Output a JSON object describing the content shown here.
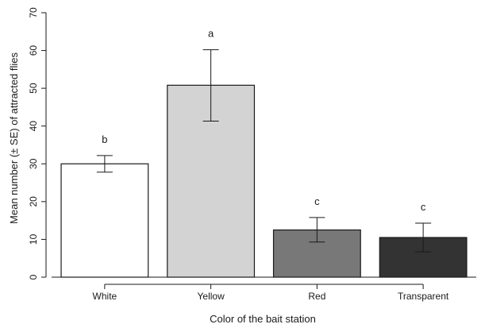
{
  "chart_data": {
    "type": "bar",
    "title": "",
    "xlabel": "Color of the bait station",
    "ylabel": "Mean number (± SE) of attracted flies",
    "ylim": [
      0,
      70
    ],
    "yticks": [
      "0",
      "10",
      "20",
      "30",
      "40",
      "50",
      "60",
      "70"
    ],
    "categories": [
      "White",
      "Yellow",
      "Red",
      "Transparent"
    ],
    "values": [
      30,
      50.8,
      12.5,
      10.5
    ],
    "error_low": [
      27.8,
      41.3,
      9.3,
      6.7
    ],
    "error_high": [
      32.2,
      60.2,
      15.8,
      14.3
    ],
    "significance_letters": [
      "b",
      "a",
      "c",
      "c"
    ],
    "bar_colors": [
      "#ffffff",
      "#d3d3d3",
      "#787878",
      "#333333"
    ],
    "grid": false,
    "legend": "none"
  }
}
